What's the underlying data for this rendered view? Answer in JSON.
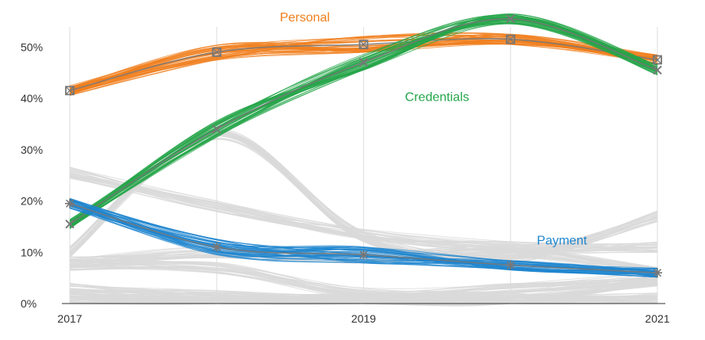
{
  "chart_data": {
    "type": "line",
    "x": [
      2017,
      2018,
      2019,
      2020,
      2021
    ],
    "x_tick_labels": [
      "2017",
      "2019",
      "2021"
    ],
    "y_tick_labels": [
      "0%",
      "10%",
      "20%",
      "30%",
      "40%",
      "50%"
    ],
    "ylim": [
      0,
      57
    ],
    "xlim": [
      2017,
      2021
    ],
    "grid": "vertical",
    "series": [
      {
        "name": "Personal",
        "color": "#f07f1d",
        "values": [
          41.5,
          49,
          50.5,
          51.5,
          47.5
        ],
        "marker": "square-x"
      },
      {
        "name": "Credentials",
        "color": "#25a64a",
        "values": [
          15.5,
          34,
          47,
          55.5,
          45.5
        ],
        "marker": "x"
      },
      {
        "name": "Payment",
        "color": "#1f86cf",
        "values": [
          19.5,
          11,
          9.5,
          7.5,
          6
        ],
        "marker": "star"
      }
    ],
    "background_series": [
      {
        "values": [
          25.5,
          19,
          13.5,
          11,
          11
        ]
      },
      {
        "values": [
          10,
          33,
          13,
          9,
          17
        ]
      },
      {
        "values": [
          7.5,
          7,
          2,
          3,
          5
        ]
      },
      {
        "values": [
          8,
          10,
          9,
          10,
          6
        ]
      },
      {
        "values": [
          3,
          1.5,
          0.5,
          0.5,
          4.5
        ]
      },
      {
        "values": [
          1,
          1,
          1,
          1,
          0.5
        ]
      },
      {
        "values": [
          0.5,
          0.5,
          0.5,
          0.5,
          1
        ]
      }
    ],
    "colors": {
      "background": "#d9d9d9",
      "summary_line": "#777777",
      "grid": "#e3e3e3",
      "axis": "#333333"
    }
  }
}
